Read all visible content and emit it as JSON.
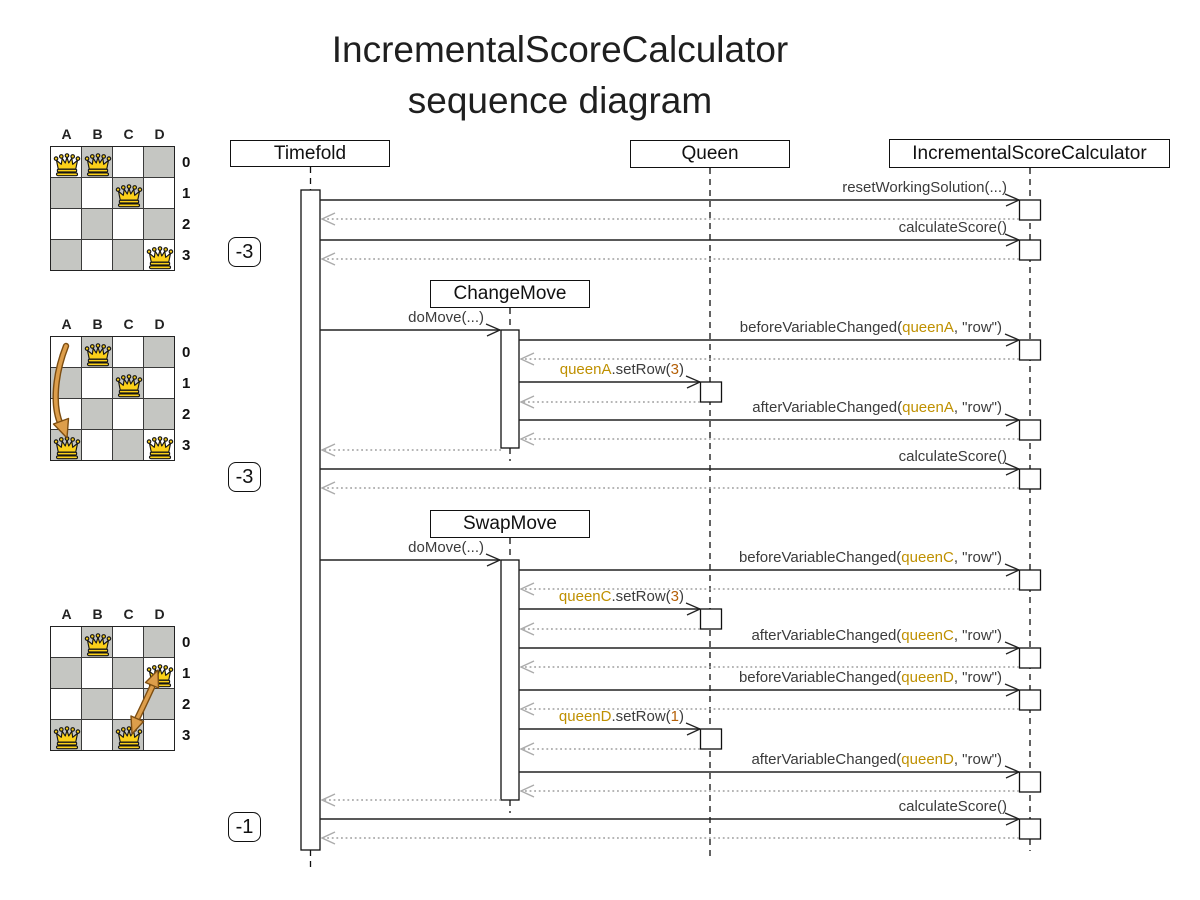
{
  "title": {
    "line1": "IncrementalScoreCalculator",
    "line2": "sequence diagram"
  },
  "palette": {
    "text": "#3b3b3b",
    "entity_gold": "#bf9000",
    "value_orange": "#b45f06",
    "gray_cell": "#c5c6c2",
    "white_cell": "#ffffff",
    "queen_fill": "#fbd019",
    "board_arrow_fill": "#dd9e4b",
    "board_arrow_outline": "#7d4e12",
    "call_line": "#222222",
    "return_line": "#9e9e9e"
  },
  "participants": [
    {
      "id": "timefold",
      "label": "Timefold"
    },
    {
      "id": "queen",
      "label": "Queen"
    },
    {
      "id": "isc",
      "label": "IncrementalScoreCalculator"
    }
  ],
  "move_boxes": [
    {
      "id": "changemove",
      "label": "ChangeMove"
    },
    {
      "id": "swapmove",
      "label": "SwapMove"
    }
  ],
  "badges": [
    {
      "text": "-3"
    },
    {
      "text": "-3"
    },
    {
      "text": "-1"
    }
  ],
  "boards": [
    {
      "name": "initial-solution",
      "col_labels": [
        "A",
        "B",
        "C",
        "D"
      ],
      "row_labels": [
        "0",
        "1",
        "2",
        "3"
      ],
      "queens": [
        [
          0,
          0
        ],
        [
          1,
          0
        ],
        [
          2,
          1
        ],
        [
          3,
          3
        ]
      ],
      "arrow": null
    },
    {
      "name": "after-change-move",
      "col_labels": [
        "A",
        "B",
        "C",
        "D"
      ],
      "row_labels": [
        "0",
        "1",
        "2",
        "3"
      ],
      "queens": [
        [
          1,
          0
        ],
        [
          2,
          1
        ],
        [
          0,
          3
        ],
        [
          3,
          3
        ]
      ],
      "arrow": {
        "kind": "single",
        "from": [
          0,
          0
        ],
        "to": [
          0,
          3
        ]
      }
    },
    {
      "name": "after-swap-move",
      "col_labels": [
        "A",
        "B",
        "C",
        "D"
      ],
      "row_labels": [
        "0",
        "1",
        "2",
        "3"
      ],
      "queens": [
        [
          1,
          0
        ],
        [
          3,
          1
        ],
        [
          0,
          3
        ],
        [
          2,
          3
        ]
      ],
      "arrow": {
        "kind": "double",
        "from": [
          3,
          1
        ],
        "to": [
          2,
          3
        ]
      }
    }
  ],
  "messages": [
    {
      "type": "call",
      "from": "timefold",
      "to": "isc",
      "parts": [
        [
          "resetWorkingSolution(...)",
          "text"
        ]
      ]
    },
    {
      "type": "return",
      "from": "isc",
      "to": "timefold",
      "parts": []
    },
    {
      "type": "call",
      "from": "timefold",
      "to": "isc",
      "parts": [
        [
          "calculateScore()",
          "text"
        ]
      ]
    },
    {
      "type": "return",
      "from": "isc",
      "to": "timefold",
      "parts": []
    },
    {
      "type": "call",
      "from": "timefold",
      "to": "changemove",
      "parts": [
        [
          "doMove(...)",
          "text"
        ]
      ]
    },
    {
      "type": "call",
      "from": "changemove",
      "to": "isc",
      "parts": [
        [
          "beforeVariableChanged(",
          "text"
        ],
        [
          "queenA",
          "entity"
        ],
        [
          ", \"row\")",
          "text"
        ]
      ]
    },
    {
      "type": "return",
      "from": "isc",
      "to": "changemove",
      "parts": []
    },
    {
      "type": "call",
      "from": "changemove",
      "to": "queen",
      "parts": [
        [
          "queenA",
          "entity"
        ],
        [
          ".setRow(",
          "text"
        ],
        [
          "3",
          "value"
        ],
        [
          ")",
          "text"
        ]
      ]
    },
    {
      "type": "return",
      "from": "queen",
      "to": "changemove",
      "parts": []
    },
    {
      "type": "call",
      "from": "changemove",
      "to": "isc",
      "parts": [
        [
          "afterVariableChanged(",
          "text"
        ],
        [
          "queenA",
          "entity"
        ],
        [
          ", \"row\")",
          "text"
        ]
      ]
    },
    {
      "type": "return",
      "from": "isc",
      "to": "changemove",
      "parts": []
    },
    {
      "type": "return",
      "from": "changemove",
      "to": "timefold",
      "parts": []
    },
    {
      "type": "call",
      "from": "timefold",
      "to": "isc",
      "parts": [
        [
          "calculateScore()",
          "text"
        ]
      ]
    },
    {
      "type": "return",
      "from": "isc",
      "to": "timefold",
      "parts": []
    },
    {
      "type": "call",
      "from": "timefold",
      "to": "swapmove",
      "parts": [
        [
          "doMove(...)",
          "text"
        ]
      ]
    },
    {
      "type": "call",
      "from": "swapmove",
      "to": "isc",
      "parts": [
        [
          "beforeVariableChanged(",
          "text"
        ],
        [
          "queenC",
          "entity"
        ],
        [
          ", \"row\")",
          "text"
        ]
      ]
    },
    {
      "type": "return",
      "from": "isc",
      "to": "swapmove",
      "parts": []
    },
    {
      "type": "call",
      "from": "swapmove",
      "to": "queen",
      "parts": [
        [
          "queenC",
          "entity"
        ],
        [
          ".setRow(",
          "text"
        ],
        [
          "3",
          "value"
        ],
        [
          ")",
          "text"
        ]
      ]
    },
    {
      "type": "return",
      "from": "queen",
      "to": "swapmove",
      "parts": []
    },
    {
      "type": "call",
      "from": "swapmove",
      "to": "isc",
      "parts": [
        [
          "afterVariableChanged(",
          "text"
        ],
        [
          "queenC",
          "entity"
        ],
        [
          ", \"row\")",
          "text"
        ]
      ]
    },
    {
      "type": "return",
      "from": "isc",
      "to": "swapmove",
      "parts": []
    },
    {
      "type": "call",
      "from": "swapmove",
      "to": "isc",
      "parts": [
        [
          "beforeVariableChanged(",
          "text"
        ],
        [
          "queenD",
          "entity"
        ],
        [
          ", \"row\")",
          "text"
        ]
      ]
    },
    {
      "type": "return",
      "from": "isc",
      "to": "swapmove",
      "parts": []
    },
    {
      "type": "call",
      "from": "swapmove",
      "to": "queen",
      "parts": [
        [
          "queenD",
          "entity"
        ],
        [
          ".setRow(",
          "text"
        ],
        [
          "1",
          "value"
        ],
        [
          ")",
          "text"
        ]
      ]
    },
    {
      "type": "return",
      "from": "queen",
      "to": "swapmove",
      "parts": []
    },
    {
      "type": "call",
      "from": "swapmove",
      "to": "isc",
      "parts": [
        [
          "afterVariableChanged(",
          "text"
        ],
        [
          "queenD",
          "entity"
        ],
        [
          ", \"row\")",
          "text"
        ]
      ]
    },
    {
      "type": "return",
      "from": "isc",
      "to": "swapmove",
      "parts": []
    },
    {
      "type": "return",
      "from": "swapmove",
      "to": "timefold",
      "parts": []
    },
    {
      "type": "call",
      "from": "timefold",
      "to": "isc",
      "parts": [
        [
          "calculateScore()",
          "text"
        ]
      ]
    },
    {
      "type": "return",
      "from": "isc",
      "to": "timefold",
      "parts": []
    }
  ]
}
